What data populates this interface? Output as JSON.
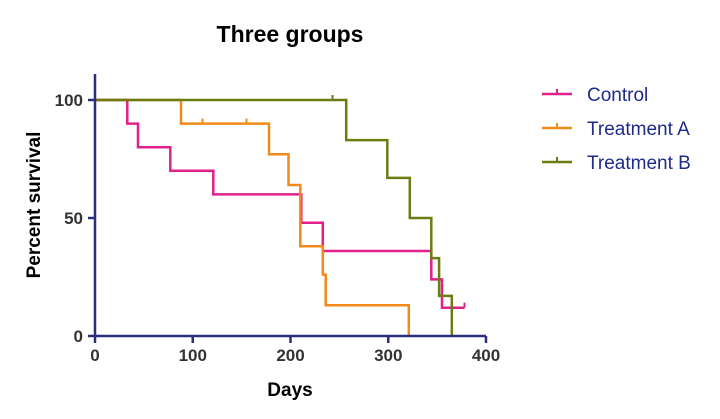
{
  "chart_data": {
    "type": "line",
    "title": "Three groups",
    "xlabel": "Days",
    "ylabel": "Percent survival",
    "xlim": [
      0,
      400
    ],
    "ylim": [
      0,
      110
    ],
    "x_ticks": [
      0,
      100,
      200,
      300,
      400
    ],
    "y_ticks": [
      0,
      50,
      100
    ],
    "step": true,
    "grid": false,
    "legend_position": "right",
    "axis_color": "#2b2e7a",
    "legend_text_color": "#1f2a8a",
    "series": [
      {
        "name": "Control",
        "color": "#e0218a",
        "steps": [
          [
            0,
            100
          ],
          [
            33,
            100
          ],
          [
            33,
            90
          ],
          [
            44,
            90
          ],
          [
            44,
            80
          ],
          [
            77,
            80
          ],
          [
            77,
            70
          ],
          [
            121,
            70
          ],
          [
            121,
            60
          ],
          [
            211,
            60
          ],
          [
            211,
            48
          ],
          [
            233,
            48
          ],
          [
            233,
            36
          ],
          [
            344,
            36
          ],
          [
            344,
            24
          ],
          [
            355,
            24
          ],
          [
            355,
            12
          ],
          [
            378,
            12
          ]
        ],
        "censored": [
          [
            378,
            12
          ]
        ]
      },
      {
        "name": "Treatment A",
        "color": "#f28a1a",
        "steps": [
          [
            0,
            100
          ],
          [
            88,
            100
          ],
          [
            88,
            90
          ],
          [
            178,
            90
          ],
          [
            178,
            77
          ],
          [
            198,
            77
          ],
          [
            198,
            64
          ],
          [
            210,
            64
          ],
          [
            210,
            38
          ],
          [
            233,
            38
          ],
          [
            233,
            26
          ],
          [
            236,
            26
          ],
          [
            236,
            13
          ],
          [
            321,
            13
          ],
          [
            321,
            0
          ]
        ],
        "censored": [
          [
            110,
            90
          ],
          [
            155,
            90
          ],
          [
            233,
            26
          ]
        ]
      },
      {
        "name": "Treatment B",
        "color": "#6b7d12",
        "steps": [
          [
            0,
            100
          ],
          [
            257,
            100
          ],
          [
            257,
            83
          ],
          [
            299,
            83
          ],
          [
            299,
            67
          ],
          [
            322,
            67
          ],
          [
            322,
            50
          ],
          [
            344,
            50
          ],
          [
            344,
            33
          ],
          [
            352,
            33
          ],
          [
            352,
            17
          ],
          [
            365,
            17
          ],
          [
            365,
            0
          ]
        ],
        "censored": [
          [
            243,
            100
          ]
        ]
      }
    ]
  }
}
